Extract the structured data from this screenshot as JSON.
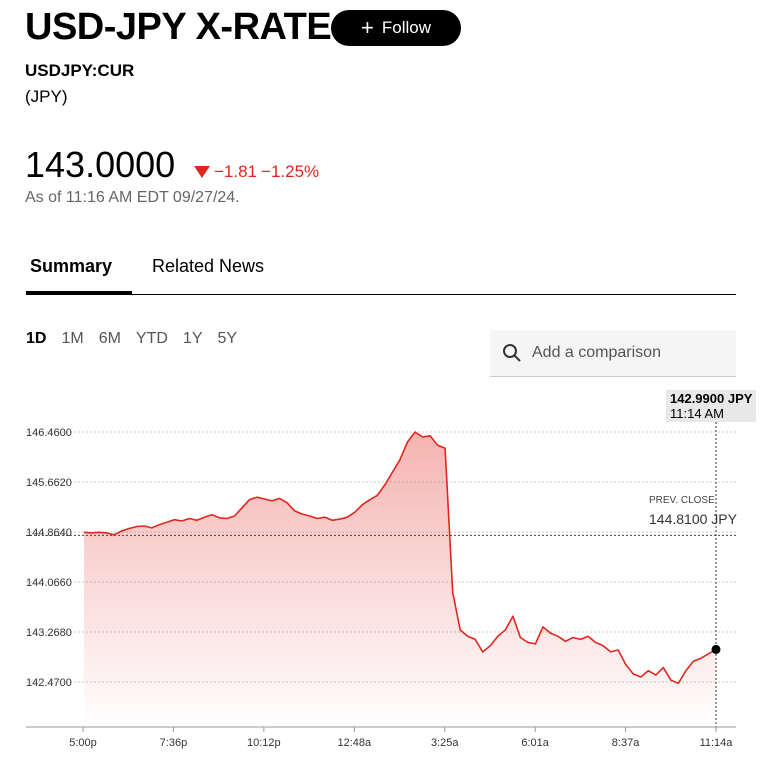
{
  "header": {
    "title": "USD-JPY X-RATE",
    "follow_label": "Follow",
    "ticker": "USDJPY:CUR",
    "currency": "(JPY)"
  },
  "quote": {
    "price": "143.0000",
    "change": "−1.81",
    "change_pct": "−1.25%",
    "as_of": "As of 11:16 AM EDT 09/27/24.",
    "direction": "down",
    "down_color": "#e0271f"
  },
  "tabs": [
    {
      "label": "Summary",
      "active": true
    },
    {
      "label": "Related News",
      "active": false
    }
  ],
  "ranges": [
    "1D",
    "1M",
    "6M",
    "YTD",
    "1Y",
    "5Y"
  ],
  "active_range": "1D",
  "compare": {
    "placeholder": "Add a comparison",
    "icon": "search-icon"
  },
  "chart_data": {
    "type": "area",
    "y_ticks": [
      "146.4600",
      "145.6620",
      "144.8640",
      "144.0660",
      "143.2680",
      "142.4700"
    ],
    "x_ticks": [
      "5:00p",
      "7:36p",
      "10:12p",
      "12:48a",
      "3:25a",
      "6:01a",
      "8:37a",
      "11:14a"
    ],
    "ylim": [
      142.3,
      146.55
    ],
    "grid": true,
    "line_color": "#e0271f",
    "values": [
      144.86,
      144.85,
      144.86,
      144.85,
      144.82,
      144.88,
      144.92,
      144.95,
      144.96,
      144.93,
      144.98,
      145.02,
      145.06,
      145.04,
      145.08,
      145.05,
      145.1,
      145.14,
      145.09,
      145.08,
      145.12,
      145.25,
      145.38,
      145.42,
      145.39,
      145.36,
      145.4,
      145.33,
      145.2,
      145.15,
      145.12,
      145.08,
      145.1,
      145.05,
      145.07,
      145.1,
      145.18,
      145.3,
      145.38,
      145.45,
      145.62,
      145.82,
      146.02,
      146.3,
      146.46,
      146.38,
      146.4,
      146.25,
      146.2,
      143.9,
      143.3,
      143.2,
      143.15,
      142.95,
      143.05,
      143.2,
      143.3,
      143.52,
      143.18,
      143.1,
      143.08,
      143.35,
      143.25,
      143.2,
      143.12,
      143.18,
      143.15,
      143.2,
      143.1,
      143.05,
      142.95,
      142.98,
      142.75,
      142.6,
      142.55,
      142.65,
      142.58,
      142.7,
      142.5,
      142.45,
      142.65,
      142.8,
      142.85,
      142.92,
      142.99
    ],
    "crosshair": {
      "value": "142.9900 JPY",
      "time": "11:14 AM"
    },
    "prev_close": {
      "label": "PREV. CLOSE",
      "value": "144.8100 JPY",
      "level": 144.81
    }
  }
}
